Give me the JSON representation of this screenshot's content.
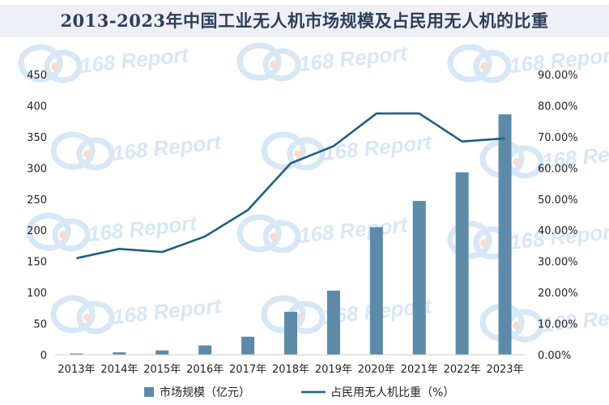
{
  "chart_data": {
    "type": "bar+line",
    "title": "2013-2023年中国工业无人机市场规模及占民用无人机的比重",
    "categories": [
      "2013年",
      "2014年",
      "2015年",
      "2016年",
      "2017年",
      "2018年",
      "2019年",
      "2020年",
      "2021年",
      "2022年",
      "2023年"
    ],
    "series": [
      {
        "name": "市场规模（亿元）",
        "type": "bar",
        "axis": "left",
        "color": "#5b8ba8",
        "values": [
          2,
          4,
          7,
          15,
          29,
          69,
          103,
          205,
          247,
          293,
          386
        ]
      },
      {
        "name": "占民用无人机比重（%）",
        "type": "line",
        "axis": "right",
        "color": "#1f5f80",
        "values": [
          31.0,
          34.0,
          33.0,
          38.0,
          46.5,
          61.5,
          67.0,
          77.5,
          77.5,
          68.5,
          69.5
        ]
      }
    ],
    "y_left": {
      "min": 0,
      "max": 450,
      "ticks": [
        "0",
        "50",
        "100",
        "150",
        "200",
        "250",
        "300",
        "350",
        "400",
        "450"
      ]
    },
    "y_right": {
      "min": 0,
      "max": 90,
      "ticks": [
        "0.00%",
        "10.00%",
        "20.00%",
        "30.00%",
        "40.00%",
        "50.00%",
        "60.00%",
        "70.00%",
        "80.00%",
        "90.00%"
      ]
    },
    "grid": false,
    "legend_position": "bottom"
  },
  "watermark": {
    "text": "168 Report",
    "color": "#b7d3ef"
  }
}
